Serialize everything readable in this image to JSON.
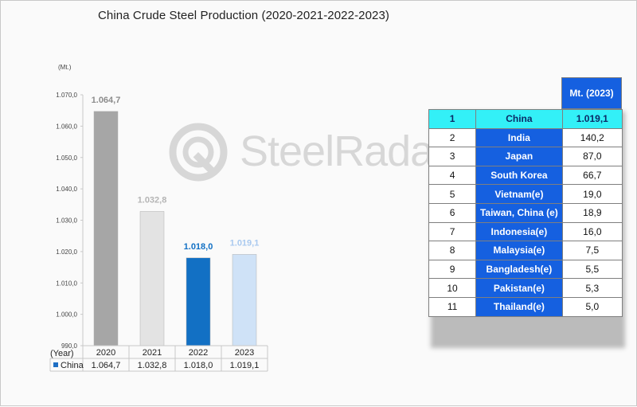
{
  "chart_data": {
    "type": "bar",
    "title": "China Crude Steel Production (2020-2021-2022-2023)",
    "unit_label": "(Mt.)",
    "x_header": "(Year)",
    "categories": [
      "2020",
      "2021",
      "2022",
      "2023"
    ],
    "series": [
      {
        "name": "China",
        "values": [
          1064.7,
          1032.8,
          1018.0,
          1019.1
        ],
        "value_labels": [
          "1.064,7",
          "1.032,8",
          "1.018,0",
          "1.019,1"
        ]
      }
    ],
    "bar_colors": [
      "#a6a6a6",
      "#e3e3e3",
      "#1270c4",
      "#cfe2f7"
    ],
    "label_colors": [
      "#8c8c8c",
      "#b5b5b5",
      "#1270c4",
      "#a9c9ef"
    ],
    "legend_color": "#1f6fc4",
    "ylim": [
      990,
      1070
    ],
    "yticks": [
      990,
      1000,
      1010,
      1020,
      1030,
      1040,
      1050,
      1060,
      1070
    ],
    "ytick_labels": [
      "990,0",
      "1.000,0",
      "1.010,0",
      "1.020,0",
      "1.030,0",
      "1.040,0",
      "1.050,0",
      "1.060,0",
      "1.070,0"
    ],
    "grid": false,
    "data_table": true
  },
  "watermark": {
    "text": "SteelRadar",
    "icon": "radar-logo-icon"
  },
  "ranking_table": {
    "header": "Mt. (2023)",
    "rows": [
      {
        "rank": "1",
        "country": "China",
        "value": "1.019,1"
      },
      {
        "rank": "2",
        "country": "India",
        "value": "140,2"
      },
      {
        "rank": "3",
        "country": "Japan",
        "value": "87,0"
      },
      {
        "rank": "4",
        "country": "South Korea",
        "value": "66,7"
      },
      {
        "rank": "5",
        "country": "Vietnam(e)",
        "value": "19,0"
      },
      {
        "rank": "6",
        "country": "Taiwan, China (e)",
        "value": "18,9"
      },
      {
        "rank": "7",
        "country": "Indonesia(e)",
        "value": "16,0"
      },
      {
        "rank": "8",
        "country": "Malaysia(e)",
        "value": "7,5"
      },
      {
        "rank": "9",
        "country": "Bangladesh(e)",
        "value": "5,5"
      },
      {
        "rank": "10",
        "country": "Pakistan(e)",
        "value": "5,3"
      },
      {
        "rank": "11",
        "country": "Thailand(e)",
        "value": "5,0"
      }
    ]
  }
}
